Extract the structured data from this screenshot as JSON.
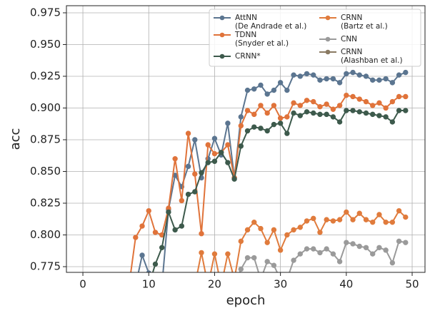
{
  "chart_data": {
    "type": "line",
    "x_label": "epoch",
    "y_label": "acc",
    "x": [
      0,
      1,
      2,
      3,
      4,
      5,
      6,
      7,
      8,
      9,
      10,
      11,
      12,
      13,
      14,
      15,
      16,
      17,
      18,
      19,
      20,
      21,
      22,
      23,
      24,
      25,
      26,
      27,
      28,
      29,
      30,
      31,
      32,
      33,
      34,
      35,
      36,
      37,
      38,
      39,
      40,
      41,
      42,
      43,
      44,
      45,
      46,
      47,
      48,
      49
    ],
    "xlim": [
      -2.5,
      51.95
    ],
    "ylim": [
      0.7705,
      0.9806
    ],
    "xticks": [
      0,
      10,
      20,
      30,
      40,
      50
    ],
    "yticks": [
      0.775,
      {
        "value": 0.8,
        "label": "0.800"
      },
      0.825,
      {
        "value": 0.85,
        "label": "0.850"
      },
      0.875,
      {
        "value": 0.9,
        "label": "0.900"
      },
      0.925,
      {
        "value": 0.95,
        "label": "0.950"
      },
      0.975
    ],
    "grid": true,
    "legend_position": "upper-right",
    "legend_columns": 2,
    "series": [
      {
        "name": "AttNN\n(De Andrade et al.)",
        "color": "#5b7590",
        "values": [
          0.76,
          0.76,
          0.76,
          0.76,
          0.76,
          0.76,
          0.76,
          0.76,
          0.76,
          0.784,
          0.77,
          0.76,
          0.76,
          0.82,
          0.847,
          0.838,
          0.854,
          0.875,
          0.845,
          0.86,
          0.876,
          0.863,
          0.888,
          0.845,
          0.893,
          0.914,
          0.915,
          0.918,
          0.911,
          0.914,
          0.92,
          0.914,
          0.926,
          0.925,
          0.927,
          0.926,
          0.922,
          0.923,
          0.923,
          0.92,
          0.927,
          0.928,
          0.926,
          0.925,
          0.922,
          0.922,
          0.923,
          0.92,
          0.926,
          0.928
        ]
      },
      {
        "name": "TDNN\n(Snyder et al.)",
        "color": "#e0733a",
        "values": [
          0.76,
          0.76,
          0.76,
          0.76,
          0.76,
          0.76,
          0.76,
          0.76,
          0.798,
          0.807,
          0.819,
          0.802,
          0.8,
          0.821,
          0.86,
          0.827,
          0.88,
          0.848,
          0.801,
          0.871,
          0.864,
          0.865,
          0.871,
          0.845,
          0.886,
          0.898,
          0.895,
          0.902,
          0.896,
          0.902,
          0.892,
          0.893,
          0.904,
          0.902,
          0.906,
          0.905,
          0.901,
          0.903,
          0.899,
          0.902,
          0.91,
          0.909,
          0.907,
          0.905,
          0.902,
          0.904,
          0.9,
          0.905,
          0.909,
          0.909
        ]
      },
      {
        "name": "CRNN*",
        "color": "#3d5a4c",
        "values": [
          0.76,
          0.76,
          0.76,
          0.76,
          0.76,
          0.76,
          0.76,
          0.76,
          0.76,
          0.76,
          0.76,
          0.777,
          0.79,
          0.818,
          0.804,
          0.807,
          0.832,
          0.834,
          0.849,
          0.857,
          0.858,
          0.865,
          0.857,
          0.844,
          0.87,
          0.882,
          0.885,
          0.884,
          0.882,
          0.887,
          0.888,
          0.88,
          0.896,
          0.894,
          0.897,
          0.896,
          0.895,
          0.895,
          0.893,
          0.889,
          0.898,
          0.898,
          0.897,
          0.896,
          0.895,
          0.894,
          0.893,
          0.889,
          0.898,
          0.898
        ]
      },
      {
        "name": "CRNN\n(Bartz et al.)",
        "color": "#e07b3c",
        "values": [
          0.76,
          0.76,
          0.76,
          0.76,
          0.76,
          0.76,
          0.76,
          0.76,
          0.76,
          0.76,
          0.76,
          0.76,
          0.76,
          0.76,
          0.76,
          0.76,
          0.76,
          0.76,
          0.786,
          0.76,
          0.785,
          0.76,
          0.785,
          0.765,
          0.795,
          0.804,
          0.81,
          0.805,
          0.794,
          0.804,
          0.788,
          0.8,
          0.804,
          0.806,
          0.811,
          0.813,
          0.802,
          0.812,
          0.811,
          0.812,
          0.818,
          0.812,
          0.817,
          0.812,
          0.81,
          0.816,
          0.81,
          0.81,
          0.819,
          0.814
        ]
      },
      {
        "name": "CNN",
        "color": "#9a9a9a",
        "values": [
          0.76,
          0.76,
          0.76,
          0.76,
          0.76,
          0.76,
          0.76,
          0.76,
          0.76,
          0.76,
          0.76,
          0.76,
          0.76,
          0.76,
          0.76,
          0.76,
          0.76,
          0.76,
          0.76,
          0.76,
          0.76,
          0.76,
          0.76,
          0.76,
          0.773,
          0.782,
          0.782,
          0.765,
          0.779,
          0.776,
          0.765,
          0.765,
          0.78,
          0.785,
          0.789,
          0.789,
          0.786,
          0.789,
          0.785,
          0.779,
          0.794,
          0.793,
          0.791,
          0.79,
          0.785,
          0.79,
          0.788,
          0.778,
          0.795,
          0.794
        ]
      },
      {
        "name": "CRNN\n(Alashban et al.)",
        "color": "#8a7a62",
        "values": [
          null,
          null,
          null,
          null,
          null,
          null,
          null,
          null,
          null,
          null,
          null,
          null,
          null,
          null,
          null,
          null,
          null,
          null,
          null,
          null,
          null,
          null,
          null,
          null,
          null,
          null,
          null,
          null,
          null,
          null,
          null,
          null,
          null,
          null,
          null,
          null,
          null,
          null,
          null,
          null,
          null,
          null,
          null,
          null,
          null,
          null,
          null,
          null,
          null,
          null
        ]
      }
    ]
  }
}
